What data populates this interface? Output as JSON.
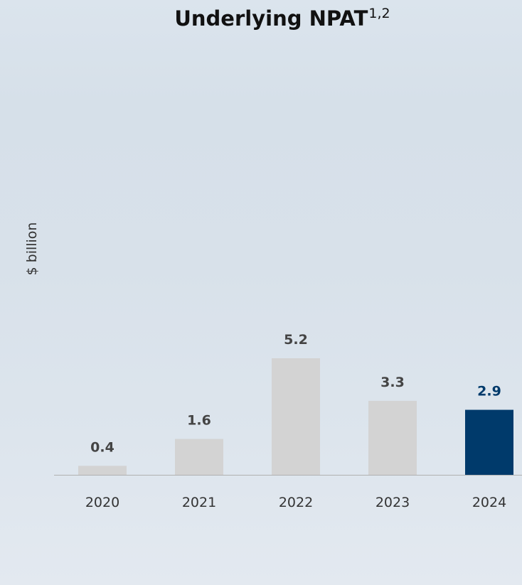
{
  "chart_data": {
    "type": "bar",
    "title": "Underlying NPAT",
    "title_superscript": "1,2",
    "xlabel": "",
    "ylabel": "$ billion",
    "categories": [
      "2020",
      "2021",
      "2022",
      "2023",
      "2024"
    ],
    "values": [
      0.4,
      1.6,
      5.2,
      3.3,
      2.9
    ],
    "data_labels": [
      "0.4",
      "1.6",
      "5.2",
      "3.3",
      "2.9"
    ],
    "highlight_category": "2024",
    "ylim": [
      0,
      5.2
    ],
    "grid": false,
    "legend": "none"
  },
  "colors": {
    "bar": "#d3d3d3",
    "highlight_bar": "#003a6b",
    "label": "#444444",
    "highlight_label": "#003a6b",
    "axis": "#b0b0b0",
    "tick_label": "#333333"
  }
}
